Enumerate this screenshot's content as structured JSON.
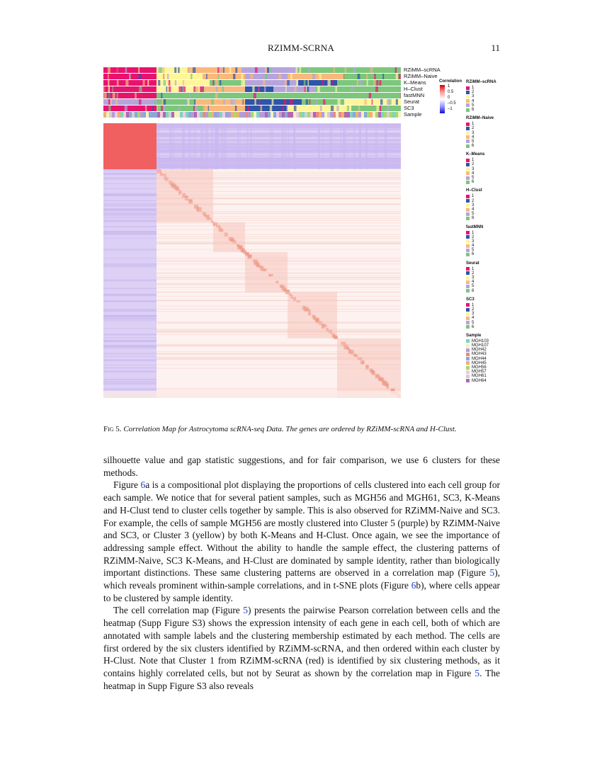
{
  "header": {
    "running_title": "RZIMM-SCRNA",
    "page_number": "11"
  },
  "figure": {
    "track_labels": [
      "RZiMM–scRNA",
      "RZiMM–Naive",
      "K–Means",
      "H–Clust",
      "fastMNN",
      "Seurat",
      "SC3",
      "Sample"
    ],
    "correlation_legend": {
      "title": "Correlation",
      "ticks": [
        "1",
        "0.5",
        "0",
        "–0.5",
        "–1"
      ]
    },
    "legends": [
      {
        "title": "RZiMM–scRNA",
        "items": [
          "1",
          "2",
          "3",
          "4",
          "5",
          "6"
        ]
      },
      {
        "title": "RZiMM–Naive",
        "items": [
          "1",
          "2",
          "3",
          "4",
          "5",
          "6"
        ]
      },
      {
        "title": "K–Means",
        "items": [
          "1",
          "2",
          "3",
          "4",
          "5",
          "6"
        ]
      },
      {
        "title": "H–Clust",
        "items": [
          "1",
          "2",
          "3",
          "4",
          "5",
          "6"
        ]
      },
      {
        "title": "fastMNN",
        "items": [
          "1",
          "2",
          "3",
          "4",
          "5",
          "6"
        ]
      },
      {
        "title": "Seurat",
        "items": [
          "1",
          "2",
          "3",
          "4",
          "5",
          "6"
        ]
      },
      {
        "title": "SC3",
        "items": [
          "1",
          "2",
          "3",
          "4",
          "5",
          "6"
        ]
      },
      {
        "title": "Sample",
        "items": [
          "MGH103",
          "MGH107",
          "MGH42",
          "MGH43",
          "MGH44",
          "MGH45",
          "MGH56",
          "MGH57",
          "MGH61",
          "MGH64"
        ]
      }
    ],
    "cluster_colors": [
      "#e8136f",
      "#2e55a8",
      "#fff59a",
      "#f9b97c",
      "#b5a5dc",
      "#7cc77c"
    ],
    "sample_colors": [
      "#7fd3c0",
      "#f3f1c0",
      "#b59bd8",
      "#e88a82",
      "#8aa8d8",
      "#f0b070",
      "#a8d870",
      "#f3c8e0",
      "#d0d0d0",
      "#b068b0"
    ]
  },
  "caption": {
    "label": "Fig 5.",
    "text": "Correlation Map for Astrocytoma scRNA-seq Data. The genes are ordered by RZiMM-scRNA and H-Clust."
  },
  "body": {
    "p1": "silhouette value and gap statistic suggestions, and for fair comparison, we use 6 clusters for these methods.",
    "p2_a": "Figure ",
    "p2_ref1": "6",
    "p2_b": "a is a compositional plot displaying the proportions of cells clustered into each cell group for each sample. We notice that for several patient samples, such as MGH56 and MGH61, SC3, K-Means and H-Clust tend to cluster cells together by sample. This is also observed for RZiMM-Naive and SC3. For example, the cells of sample MGH56 are mostly clustered into Cluster 5 (purple) by RZiMM-Naive and SC3, or Cluster 3 (yellow) by both K-Means and H-Clust. Once again, we see the importance of addressing sample effect. Without the ability to handle the sample effect, the clustering patterns of RZiMM-Naive, SC3 K-Means, and H-Clust are dominated by sample identity, rather than biologically important distinctions. These same clustering patterns are observed in a correlation map (Figure ",
    "p2_ref2": "5",
    "p2_c": "), which reveals prominent within-sample correlations, and in t-SNE plots (Figure ",
    "p2_ref3": "6",
    "p2_d": "b), where cells appear to be clustered by sample identity.",
    "p3_a": "The cell correlation map (Figure ",
    "p3_ref1": "5",
    "p3_b": ") presents the pairwise Pearson correlation between cells and the heatmap (Supp Figure S3) shows the expression intensity of each gene in each cell, both of which are annotated with sample labels and the clustering membership estimated by each method. The cells are first ordered by the six clusters identified by RZiMM-scRNA, and then ordered within each cluster by H-Clust. Note that Cluster 1 from RZiMM-scRNA (red) is identified by six clustering methods, as it contains highly correlated cells, but not by Seurat as shown by the correlation map in Figure ",
    "p3_ref2": "5",
    "p3_c": ". The heatmap in Supp Figure S3 also reveals"
  }
}
